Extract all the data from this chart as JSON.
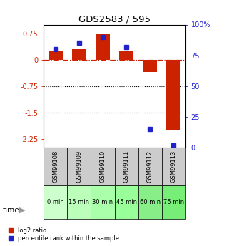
{
  "title": "GDS2583 / 595",
  "samples": [
    "GSM99108",
    "GSM99109",
    "GSM99110",
    "GSM99111",
    "GSM99112",
    "GSM99113"
  ],
  "time_labels": [
    "0 min",
    "15 min",
    "30 min",
    "45 min",
    "60 min",
    "75 min"
  ],
  "log2_ratios": [
    0.25,
    0.3,
    0.75,
    0.25,
    -0.35,
    -2.0
  ],
  "percentile_ranks": [
    80,
    85,
    90,
    82,
    15,
    2
  ],
  "ylim_left": [
    -2.5,
    1.0
  ],
  "ylim_right": [
    0,
    100
  ],
  "yticks_left": [
    0.75,
    0,
    -0.75,
    -1.5,
    -2.25
  ],
  "yticks_right": [
    100,
    75,
    50,
    25,
    0
  ],
  "bar_color": "#cc2200",
  "dot_color": "#2222cc",
  "dotted_lines": [
    -0.75,
    -1.5
  ],
  "time_colors": [
    "#ccffcc",
    "#bbffbb",
    "#aaffaa",
    "#99ff99",
    "#88ee88",
    "#77ee77"
  ],
  "gsm_bg": "#cccccc",
  "title_color": "#111111",
  "fig_width": 3.21,
  "fig_height": 3.45,
  "dpi": 100
}
